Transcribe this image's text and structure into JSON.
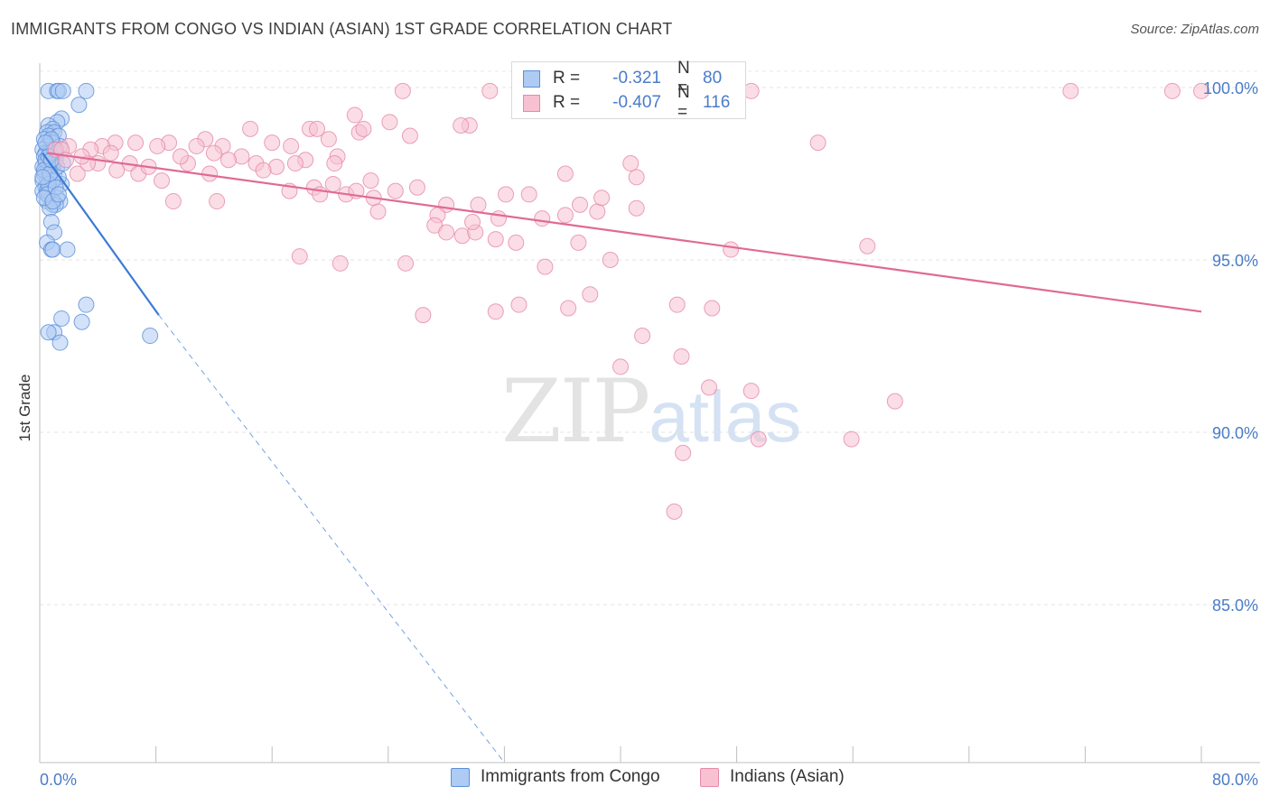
{
  "title": "IMMIGRANTS FROM CONGO VS INDIAN (ASIAN) 1ST GRADE CORRELATION CHART",
  "source": "Source: ZipAtlas.com",
  "watermark": {
    "zip": "ZIP",
    "atlas": "atlas"
  },
  "legend_top": {
    "rows": [
      {
        "r_label": "R =",
        "r_value": "-0.321",
        "n_label": "N =",
        "n_value": "80",
        "color": "#aecbf3",
        "border": "#5b8fd9"
      },
      {
        "r_label": "R =",
        "r_value": "-0.407",
        "n_label": "N =",
        "n_value": "116",
        "color": "#f7c1d2",
        "border": "#e58aab"
      }
    ]
  },
  "legend_bottom": [
    {
      "label": "Immigrants from Congo",
      "color": "#aecbf3",
      "border": "#5b8fd9"
    },
    {
      "label": "Indians (Asian)",
      "color": "#f7c1d2",
      "border": "#e58aab"
    }
  ],
  "chart_data": {
    "type": "scatter",
    "title": "IMMIGRANTS FROM CONGO VS INDIAN (ASIAN) 1ST GRADE CORRELATION CHART",
    "xlabel": "",
    "ylabel": "1st Grade",
    "xlim": [
      0,
      80
    ],
    "ylim": [
      80.5,
      100.5
    ],
    "x_tick_labels": [
      "0.0%",
      "80.0%"
    ],
    "y_ticks": [
      85,
      90,
      95,
      100
    ],
    "y_tick_labels": [
      "85.0%",
      "90.0%",
      "95.0%",
      "100.0%"
    ],
    "series": [
      {
        "name": "Immigrants from Congo",
        "color": "#aecbf3",
        "stroke": "#5b8fd9",
        "trend_color": "#3a7bd5",
        "trend": {
          "x0": 0.2,
          "y0": 98.1,
          "x1": 8.2,
          "y1": 93.4,
          "dash_to_x": 32.0
        },
        "points": [
          [
            0.6,
            99.9
          ],
          [
            1.2,
            99.9
          ],
          [
            1.3,
            99.9
          ],
          [
            1.6,
            99.9
          ],
          [
            3.2,
            99.9
          ],
          [
            2.7,
            99.5
          ],
          [
            1.5,
            99.1
          ],
          [
            1.2,
            99.0
          ],
          [
            0.6,
            98.9
          ],
          [
            0.9,
            98.8
          ],
          [
            0.5,
            98.7
          ],
          [
            1.0,
            98.7
          ],
          [
            0.6,
            98.6
          ],
          [
            1.3,
            98.6
          ],
          [
            0.3,
            98.5
          ],
          [
            0.9,
            98.4
          ],
          [
            1.4,
            98.3
          ],
          [
            0.5,
            98.3
          ],
          [
            0.7,
            98.2
          ],
          [
            0.2,
            98.2
          ],
          [
            1.1,
            98.1
          ],
          [
            0.4,
            98.1
          ],
          [
            0.8,
            98.0
          ],
          [
            0.3,
            98.0
          ],
          [
            0.6,
            97.9
          ],
          [
            1.1,
            97.9
          ],
          [
            0.4,
            97.8
          ],
          [
            0.9,
            97.7
          ],
          [
            0.2,
            97.7
          ],
          [
            0.6,
            97.6
          ],
          [
            1.0,
            97.5
          ],
          [
            0.3,
            97.5
          ],
          [
            0.7,
            97.4
          ],
          [
            0.5,
            97.3
          ],
          [
            0.2,
            97.3
          ],
          [
            0.8,
            97.2
          ],
          [
            1.5,
            97.2
          ],
          [
            0.4,
            97.1
          ],
          [
            0.2,
            97.0
          ],
          [
            0.6,
            96.9
          ],
          [
            1.2,
            96.8
          ],
          [
            1.4,
            96.7
          ],
          [
            0.5,
            96.7
          ],
          [
            0.9,
            96.6
          ],
          [
            1.1,
            96.6
          ],
          [
            0.7,
            96.5
          ],
          [
            0.8,
            96.1
          ],
          [
            1.0,
            95.8
          ],
          [
            0.5,
            95.5
          ],
          [
            0.8,
            95.3
          ],
          [
            0.9,
            95.3
          ],
          [
            1.9,
            95.3
          ],
          [
            3.2,
            93.7
          ],
          [
            1.5,
            93.3
          ],
          [
            2.9,
            93.2
          ],
          [
            1.0,
            92.9
          ],
          [
            0.6,
            92.9
          ],
          [
            1.4,
            92.6
          ],
          [
            7.6,
            92.8
          ],
          [
            0.4,
            97.9
          ],
          [
            0.7,
            98.1
          ],
          [
            1.3,
            97.4
          ],
          [
            0.5,
            97.0
          ],
          [
            1.2,
            97.7
          ],
          [
            0.9,
            97.3
          ],
          [
            0.3,
            97.6
          ],
          [
            0.6,
            97.2
          ],
          [
            0.8,
            98.5
          ],
          [
            1.0,
            98.2
          ],
          [
            0.4,
            98.4
          ],
          [
            1.6,
            97.8
          ],
          [
            0.7,
            97.5
          ],
          [
            0.5,
            96.9
          ],
          [
            1.1,
            97.1
          ],
          [
            0.3,
            96.8
          ],
          [
            0.9,
            96.7
          ],
          [
            1.3,
            96.9
          ],
          [
            0.6,
            98.0
          ],
          [
            0.2,
            97.4
          ],
          [
            0.8,
            97.9
          ]
        ]
      },
      {
        "name": "Indians (Asian)",
        "color": "#f7c1d2",
        "stroke": "#e58aab",
        "trend_color": "#e06a95",
        "trend": {
          "x0": 0.5,
          "y0": 98.1,
          "x1": 80.0,
          "y1": 93.5
        },
        "points": [
          [
            25.0,
            99.9
          ],
          [
            31.0,
            99.9
          ],
          [
            49.0,
            99.9
          ],
          [
            71.0,
            99.9
          ],
          [
            78.0,
            99.9
          ],
          [
            80.0,
            99.9
          ],
          [
            21.7,
            99.2
          ],
          [
            24.1,
            99.0
          ],
          [
            29.6,
            98.9
          ],
          [
            14.5,
            98.8
          ],
          [
            18.6,
            98.8
          ],
          [
            19.9,
            98.5
          ],
          [
            22.0,
            98.7
          ],
          [
            29.0,
            98.9
          ],
          [
            19.1,
            98.8
          ],
          [
            25.5,
            98.6
          ],
          [
            22.3,
            98.8
          ],
          [
            11.4,
            98.5
          ],
          [
            12.6,
            98.3
          ],
          [
            8.9,
            98.4
          ],
          [
            5.2,
            98.4
          ],
          [
            6.6,
            98.4
          ],
          [
            4.3,
            98.3
          ],
          [
            2.0,
            98.3
          ],
          [
            1.1,
            98.2
          ],
          [
            3.5,
            98.2
          ],
          [
            1.5,
            98.2
          ],
          [
            8.1,
            98.3
          ],
          [
            10.8,
            98.3
          ],
          [
            16.0,
            98.4
          ],
          [
            17.3,
            98.3
          ],
          [
            13.9,
            98.0
          ],
          [
            18.3,
            97.9
          ],
          [
            53.6,
            98.4
          ],
          [
            16.3,
            97.7
          ],
          [
            14.9,
            97.8
          ],
          [
            17.6,
            97.8
          ],
          [
            10.2,
            97.8
          ],
          [
            20.5,
            98.0
          ],
          [
            20.3,
            97.8
          ],
          [
            40.7,
            97.8
          ],
          [
            6.2,
            97.8
          ],
          [
            4.0,
            97.8
          ],
          [
            2.6,
            97.5
          ],
          [
            5.3,
            97.6
          ],
          [
            11.7,
            97.5
          ],
          [
            8.4,
            97.3
          ],
          [
            36.2,
            97.5
          ],
          [
            41.1,
            97.4
          ],
          [
            18.9,
            97.1
          ],
          [
            17.2,
            97.0
          ],
          [
            19.3,
            96.9
          ],
          [
            20.2,
            97.2
          ],
          [
            21.1,
            96.9
          ],
          [
            21.8,
            97.0
          ],
          [
            23.0,
            96.8
          ],
          [
            32.1,
            96.9
          ],
          [
            9.2,
            96.7
          ],
          [
            12.2,
            96.7
          ],
          [
            28.0,
            96.6
          ],
          [
            30.2,
            96.6
          ],
          [
            37.2,
            96.6
          ],
          [
            38.4,
            96.4
          ],
          [
            41.1,
            96.5
          ],
          [
            23.3,
            96.4
          ],
          [
            36.2,
            96.3
          ],
          [
            27.4,
            96.3
          ],
          [
            34.6,
            96.2
          ],
          [
            27.2,
            96.0
          ],
          [
            28.0,
            95.8
          ],
          [
            29.1,
            95.7
          ],
          [
            31.4,
            95.6
          ],
          [
            30.0,
            95.8
          ],
          [
            32.8,
            95.5
          ],
          [
            37.1,
            95.5
          ],
          [
            57.0,
            95.4
          ],
          [
            47.6,
            95.3
          ],
          [
            17.9,
            95.1
          ],
          [
            25.2,
            94.9
          ],
          [
            20.7,
            94.9
          ],
          [
            34.8,
            94.8
          ],
          [
            39.3,
            95.0
          ],
          [
            31.4,
            93.5
          ],
          [
            26.4,
            93.4
          ],
          [
            33.0,
            93.7
          ],
          [
            37.9,
            94.0
          ],
          [
            36.4,
            93.6
          ],
          [
            43.9,
            93.7
          ],
          [
            46.3,
            93.6
          ],
          [
            41.5,
            92.8
          ],
          [
            44.2,
            92.2
          ],
          [
            40.0,
            91.9
          ],
          [
            46.1,
            91.3
          ],
          [
            49.0,
            91.2
          ],
          [
            58.9,
            90.9
          ],
          [
            49.5,
            89.8
          ],
          [
            55.9,
            89.8
          ],
          [
            44.3,
            89.4
          ],
          [
            43.7,
            87.7
          ],
          [
            3.3,
            97.8
          ],
          [
            6.8,
            97.5
          ],
          [
            9.7,
            98.0
          ],
          [
            13.0,
            97.9
          ],
          [
            15.4,
            97.6
          ],
          [
            7.5,
            97.7
          ],
          [
            12.0,
            98.1
          ],
          [
            2.9,
            98.0
          ],
          [
            4.9,
            98.1
          ],
          [
            1.8,
            97.9
          ],
          [
            22.8,
            97.3
          ],
          [
            26.0,
            97.1
          ],
          [
            24.5,
            97.0
          ],
          [
            33.7,
            96.9
          ],
          [
            38.7,
            96.8
          ],
          [
            29.8,
            96.1
          ],
          [
            31.6,
            96.2
          ]
        ]
      }
    ]
  }
}
